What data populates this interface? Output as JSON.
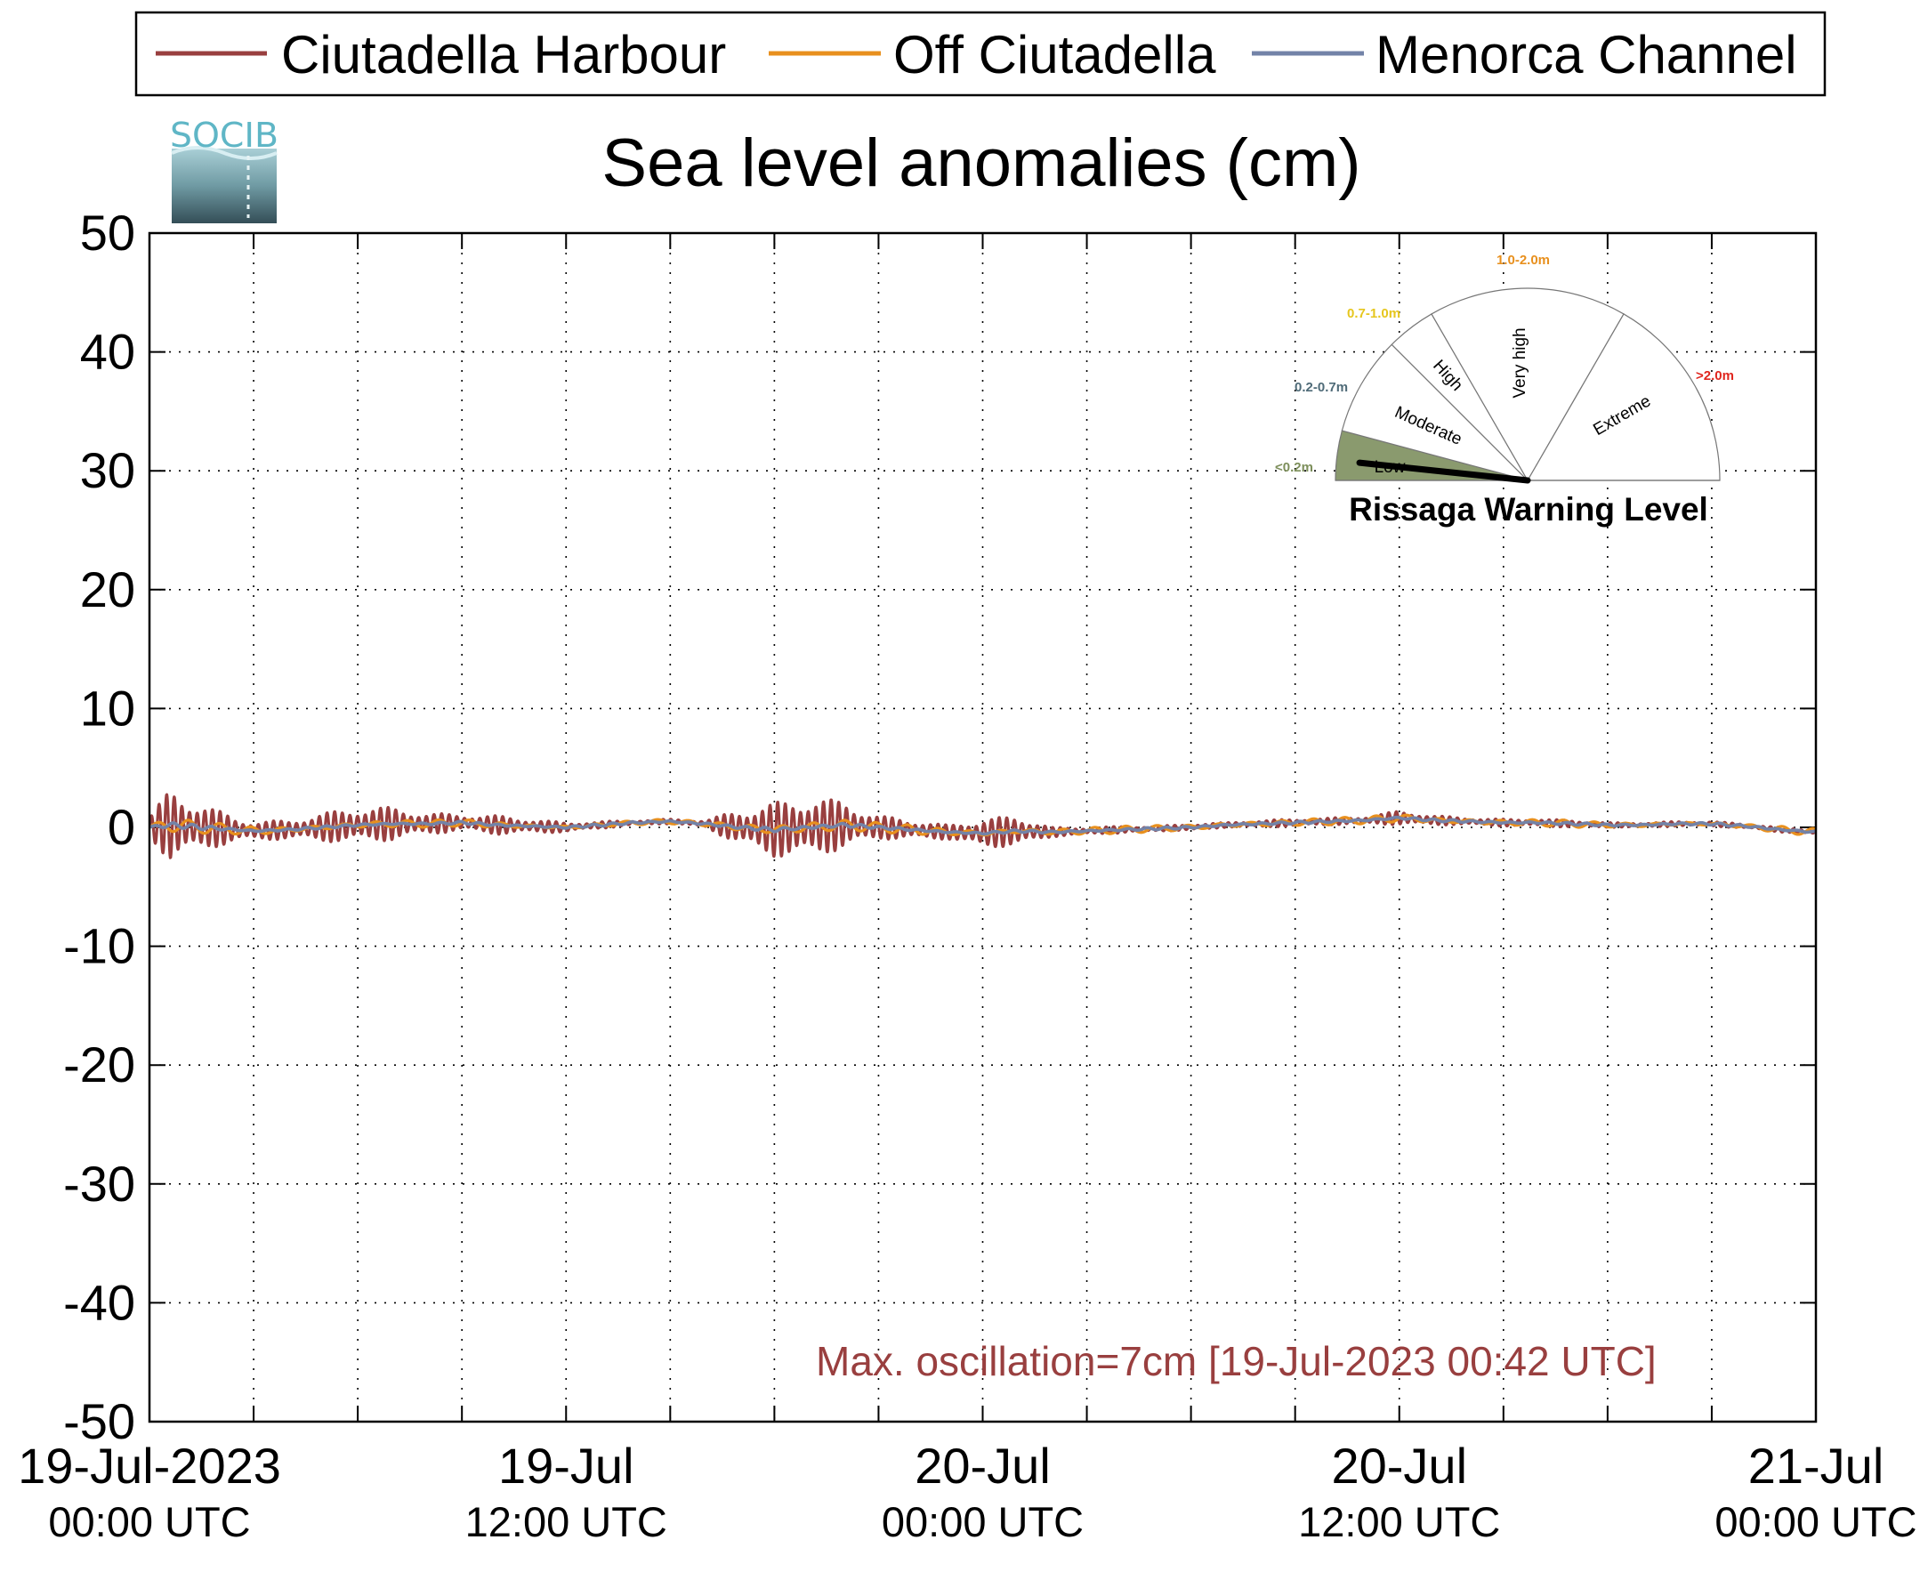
{
  "chart_data": {
    "type": "line",
    "title": "Sea level anomalies (cm)",
    "legend": {
      "placement": "top",
      "entries": [
        "Ciutadella Harbour",
        "Off Ciutadella",
        "Menorca Channel"
      ]
    },
    "y_axis": {
      "range": [
        -50,
        50
      ],
      "ticks": [
        50,
        40,
        30,
        20,
        10,
        0,
        -10,
        -20,
        -30,
        -40,
        -50
      ],
      "tick_labels": [
        "50",
        "40",
        "30",
        "20",
        "10",
        "0",
        "-10",
        "-20",
        "-30",
        "-40",
        "-50"
      ]
    },
    "x_axis": {
      "range": [
        0,
        48
      ],
      "major_ticks_hours": [
        0,
        12,
        24,
        36,
        48
      ],
      "minor_tick_step_hours": 3,
      "tick_labels": [
        {
          "line1": "19-Jul-2023",
          "line2": "00:00 UTC"
        },
        {
          "line1": "19-Jul",
          "line2": "12:00 UTC"
        },
        {
          "line1": "20-Jul",
          "line2": "00:00 UTC"
        },
        {
          "line1": "20-Jul",
          "line2": "12:00 UTC"
        },
        {
          "line1": "21-Jul",
          "line2": "00:00 UTC"
        }
      ]
    },
    "grid": true,
    "series": [
      {
        "name": "Ciutadella Harbour",
        "color": "#993f3f",
        "x": [
          0,
          0.6,
          1.5,
          2.5,
          3.0,
          4.0,
          5.0,
          6.0,
          7.0,
          8.0,
          9.0,
          10.0,
          11.0,
          12.0,
          13.0,
          14.0,
          15.0,
          16.0,
          17.0,
          18.0,
          19.0,
          20.0,
          21.0,
          22.0,
          23.0,
          24.0,
          25.0,
          26.0,
          27.0,
          28.0,
          29.0,
          30.0,
          31.0,
          32.0,
          33.0,
          34.0,
          35.0,
          36.0,
          37.0,
          38.0,
          39.0,
          40.0,
          41.0,
          42.0,
          43.0,
          44.0,
          45.0,
          46.0,
          47.0,
          48.0
        ],
        "center": [
          0,
          0.2,
          0.0,
          -0.2,
          -0.3,
          -0.2,
          0.0,
          0.2,
          0.3,
          0.3,
          0.4,
          0.2,
          0.1,
          0.0,
          0.2,
          0.4,
          0.5,
          0.3,
          0.0,
          -0.2,
          0.0,
          0.2,
          0.0,
          -0.2,
          -0.4,
          -0.5,
          -0.3,
          -0.4,
          -0.3,
          -0.2,
          -0.1,
          0.0,
          0.2,
          0.3,
          0.4,
          0.5,
          0.6,
          0.8,
          0.6,
          0.5,
          0.4,
          0.4,
          0.3,
          0.2,
          0.2,
          0.3,
          0.3,
          0.1,
          -0.2,
          -0.4
        ],
        "oscillation_amplitude": [
          1.0,
          3.0,
          2.0,
          1.0,
          0.8,
          0.8,
          1.2,
          1.5,
          1.4,
          0.9,
          0.7,
          0.8,
          0.6,
          0.4,
          0.3,
          0.2,
          0.2,
          0.3,
          1.5,
          2.3,
          2.6,
          2.0,
          1.0,
          0.8,
          0.6,
          1.2,
          1.3,
          0.4,
          0.3,
          0.3,
          0.2,
          0.3,
          0.2,
          0.3,
          0.3,
          0.3,
          0.3,
          0.6,
          0.4,
          0.3,
          0.3,
          0.3,
          0.3,
          0.2,
          0.2,
          0.2,
          0.2,
          0.2,
          0.2,
          0.2
        ]
      },
      {
        "name": "Off Ciutadella",
        "color": "#e8901e",
        "x": [
          0,
          0.6,
          1.5,
          2.5,
          3.0,
          4.0,
          5.0,
          6.0,
          7.0,
          8.0,
          9.0,
          10.0,
          11.0,
          12.0,
          13.0,
          14.0,
          15.0,
          16.0,
          17.0,
          18.0,
          19.0,
          20.0,
          21.0,
          22.0,
          23.0,
          24.0,
          25.0,
          26.0,
          27.0,
          28.0,
          29.0,
          30.0,
          31.0,
          32.0,
          33.0,
          34.0,
          35.0,
          36.0,
          37.0,
          38.0,
          39.0,
          40.0,
          41.0,
          42.0,
          43.0,
          44.0,
          45.0,
          46.0,
          47.0,
          48.0
        ],
        "center": [
          0,
          0.2,
          0.0,
          -0.2,
          -0.3,
          -0.2,
          0.0,
          0.2,
          0.3,
          0.3,
          0.4,
          0.2,
          0.1,
          0.0,
          0.2,
          0.4,
          0.5,
          0.3,
          0.0,
          -0.2,
          0.0,
          0.2,
          0.0,
          -0.2,
          -0.4,
          -0.5,
          -0.3,
          -0.4,
          -0.3,
          -0.2,
          -0.1,
          0.0,
          0.2,
          0.3,
          0.4,
          0.5,
          0.6,
          0.8,
          0.6,
          0.5,
          0.4,
          0.4,
          0.3,
          0.2,
          0.2,
          0.3,
          0.3,
          0.1,
          -0.2,
          -0.4
        ],
        "oscillation_amplitude": [
          0.3,
          0.6,
          0.5,
          0.4,
          0.4,
          0.3,
          0.3,
          0.3,
          0.3,
          0.3,
          0.3,
          0.3,
          0.2,
          0.2,
          0.2,
          0.2,
          0.2,
          0.2,
          0.4,
          0.6,
          0.6,
          0.5,
          0.4,
          0.4,
          0.3,
          0.3,
          0.3,
          0.3,
          0.3,
          0.3,
          0.3,
          0.3,
          0.3,
          0.3,
          0.3,
          0.3,
          0.3,
          0.4,
          0.3,
          0.3,
          0.3,
          0.3,
          0.3,
          0.2,
          0.2,
          0.2,
          0.2,
          0.2,
          0.3,
          0.3
        ]
      },
      {
        "name": "Menorca Channel",
        "color": "#7383a8",
        "x": [
          0,
          0.6,
          1.5,
          2.5,
          3.0,
          4.0,
          5.0,
          6.0,
          7.0,
          8.0,
          9.0,
          10.0,
          11.0,
          12.0,
          13.0,
          14.0,
          15.0,
          16.0,
          17.0,
          18.0,
          19.0,
          20.0,
          21.0,
          22.0,
          23.0,
          24.0,
          25.0,
          26.0,
          27.0,
          28.0,
          29.0,
          30.0,
          31.0,
          32.0,
          33.0,
          34.0,
          35.0,
          36.0,
          37.0,
          38.0,
          39.0,
          40.0,
          41.0,
          42.0,
          43.0,
          44.0,
          45.0,
          46.0,
          47.0,
          48.0
        ],
        "center": [
          0,
          0.2,
          0.0,
          -0.2,
          -0.3,
          -0.2,
          0.0,
          0.2,
          0.3,
          0.3,
          0.4,
          0.2,
          0.1,
          0.0,
          0.2,
          0.4,
          0.5,
          0.3,
          0.0,
          -0.2,
          0.0,
          0.2,
          0.0,
          -0.2,
          -0.4,
          -0.5,
          -0.3,
          -0.4,
          -0.3,
          -0.2,
          -0.1,
          0.0,
          0.2,
          0.3,
          0.4,
          0.5,
          0.6,
          0.8,
          0.6,
          0.5,
          0.4,
          0.4,
          0.3,
          0.2,
          0.2,
          0.3,
          0.3,
          0.1,
          -0.2,
          -0.4
        ],
        "oscillation_amplitude": [
          0.1,
          0.2,
          0.2,
          0.1,
          0.1,
          0.1,
          0.1,
          0.1,
          0.1,
          0.1,
          0.1,
          0.1,
          0.1,
          0.1,
          0.1,
          0.1,
          0.1,
          0.1,
          0.1,
          0.2,
          0.2,
          0.2,
          0.1,
          0.1,
          0.1,
          0.1,
          0.1,
          0.1,
          0.1,
          0.1,
          0.1,
          0.1,
          0.1,
          0.1,
          0.1,
          0.1,
          0.1,
          0.1,
          0.1,
          0.1,
          0.1,
          0.1,
          0.1,
          0.1,
          0.1,
          0.1,
          0.1,
          0.1,
          0.1,
          0.1
        ]
      }
    ],
    "annotation": {
      "text": "Max. oscillation=7cm [19-Jul-2023 00:42 UTC]",
      "color": "#993f3f"
    }
  },
  "logo": {
    "text": "SOCIB",
    "text_color": "#5fb6c6"
  },
  "gauge": {
    "title": "Rissaga Warning Level",
    "active_level": "Low",
    "active_color": "#8a9a6e",
    "levels": [
      {
        "name": "Low",
        "range_label": "<0.2m",
        "range_color": "#7d8f5b",
        "start_deg": 180,
        "end_deg": 165
      },
      {
        "name": "Moderate",
        "range_label": "0.2-0.7m",
        "range_color": "#4f6b78",
        "start_deg": 165,
        "end_deg": 135
      },
      {
        "name": "High",
        "range_label": "0.7-1.0m",
        "range_color": "#e6c61e",
        "start_deg": 135,
        "end_deg": 120
      },
      {
        "name": "Very high",
        "range_label": "1.0-2.0m",
        "range_color": "#e8901e",
        "start_deg": 120,
        "end_deg": 60
      },
      {
        "name": "Extreme",
        "range_label": ">2.0m",
        "range_color": "#e0261e",
        "start_deg": 60,
        "end_deg": 0
      }
    ],
    "needle_deg": 174
  }
}
